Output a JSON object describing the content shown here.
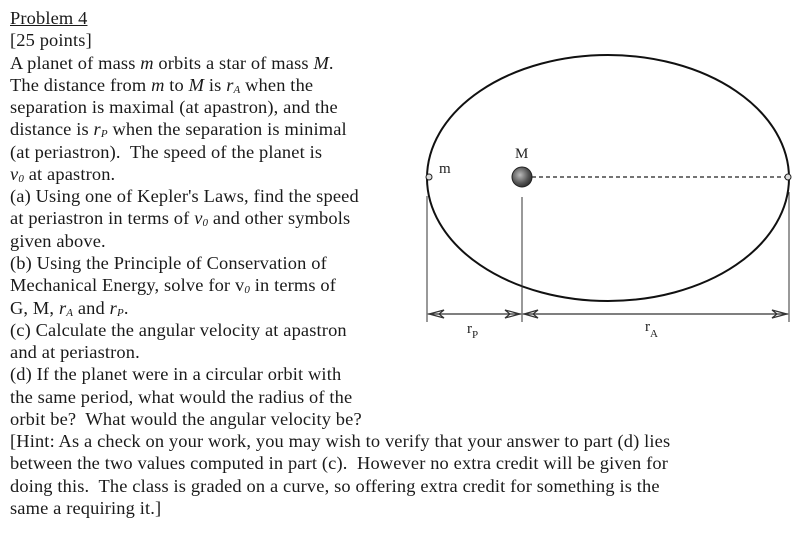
{
  "problem": {
    "lines": [
      [
        {
          "t": "Problem 4",
          "u": true
        }
      ],
      [
        {
          "t": "[25 points]"
        }
      ],
      [
        {
          "t": "A planet of mass "
        },
        {
          "t": "m",
          "i": true
        },
        {
          "t": " orbits a star of mass "
        },
        {
          "t": "M",
          "i": true
        },
        {
          "t": "."
        }
      ],
      [
        {
          "t": "The distance from "
        },
        {
          "t": "m",
          "i": true
        },
        {
          "t": " to "
        },
        {
          "t": "M",
          "i": true
        },
        {
          "t": " is "
        },
        {
          "t": "r",
          "i": true
        },
        {
          "t": "A",
          "s": true
        },
        {
          "t": " when the"
        }
      ],
      [
        {
          "t": "separation is maximal (at apastron), and the"
        }
      ],
      [
        {
          "t": "distance is "
        },
        {
          "t": "r",
          "i": true
        },
        {
          "t": "P",
          "s": true
        },
        {
          "t": " when the separation is minimal"
        }
      ],
      [
        {
          "t": "(at periastron).  The speed of the planet is"
        }
      ],
      [
        {
          "t": "v",
          "i": true
        },
        {
          "t": "0",
          "s": true
        },
        {
          "t": " at apastron."
        }
      ],
      [
        {
          "t": "(a) Using one of Kepler's Laws, find the speed"
        }
      ],
      [
        {
          "t": "at periastron in terms of "
        },
        {
          "t": "v",
          "i": true
        },
        {
          "t": "0",
          "s": true
        },
        {
          "t": " and other symbols"
        }
      ],
      [
        {
          "t": "given above."
        }
      ],
      [
        {
          "t": "(b) Using the Principle of Conservation of"
        }
      ],
      [
        {
          "t": "Mechanical Energy, solve for v"
        },
        {
          "t": "0",
          "s": true
        },
        {
          "t": " in terms of"
        }
      ],
      [
        {
          "t": "G, M, "
        },
        {
          "t": "r",
          "i": true
        },
        {
          "t": "A",
          "s": true
        },
        {
          "t": " and "
        },
        {
          "t": "r",
          "i": true
        },
        {
          "t": "P",
          "s": true
        },
        {
          "t": "."
        }
      ],
      [
        {
          "t": "(c) Calculate the angular velocity at apastron"
        }
      ],
      [
        {
          "t": "and at periastron."
        }
      ],
      [
        {
          "t": "(d) If the planet were in a circular orbit with"
        }
      ],
      [
        {
          "t": "the same period, what would the radius of the"
        }
      ],
      [
        {
          "t": "orbit be?  What would the angular velocity be?"
        }
      ],
      [
        {
          "t": "[Hint: As a check on your work, you may wish to verify that your answer to part (d) lies"
        }
      ],
      [
        {
          "t": "between the two values computed in part (c).  However no extra credit will be given for"
        }
      ],
      [
        {
          "t": "doing this.  The class is graded on a curve, so offering extra credit for something is the"
        }
      ],
      [
        {
          "t": "same a requiring it.]"
        }
      ]
    ]
  },
  "diagram": {
    "planet_label": "m",
    "star_label": "M",
    "rp_label": "r",
    "rp_sub": "P",
    "ra_label": "r",
    "ra_sub": "A"
  }
}
